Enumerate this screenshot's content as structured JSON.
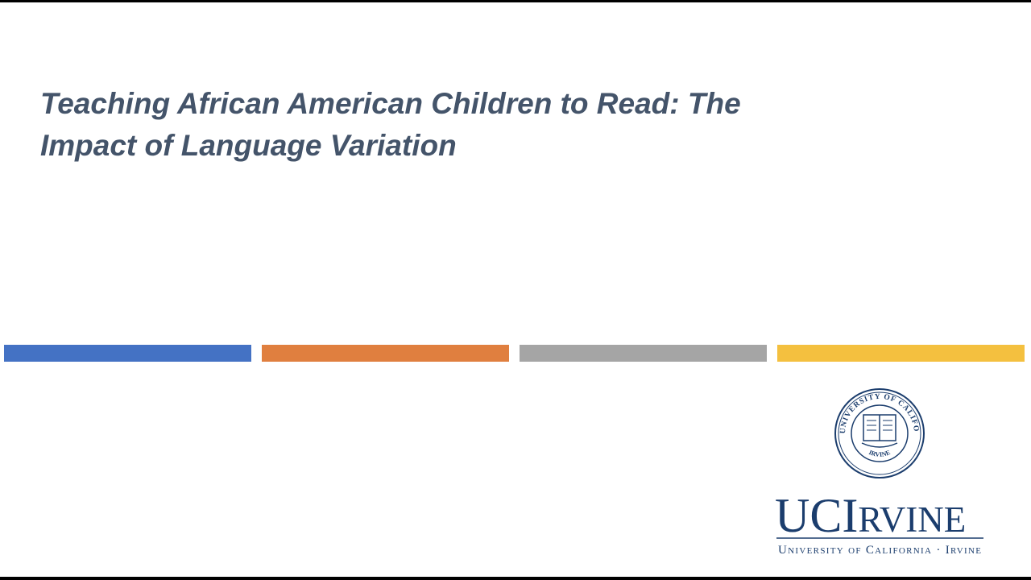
{
  "slide": {
    "title_lines": [
      "Teaching African American Children to Read: The",
      "Impact of Language Variation"
    ],
    "logo": {
      "seal_ring": "THE UNIVERSITY OF CALIFORNIA",
      "seal_campus": "IRVINE",
      "wordmark_large": "UCI",
      "wordmark_small": "RVINE",
      "tagline": "University of California · Irvine"
    }
  }
}
